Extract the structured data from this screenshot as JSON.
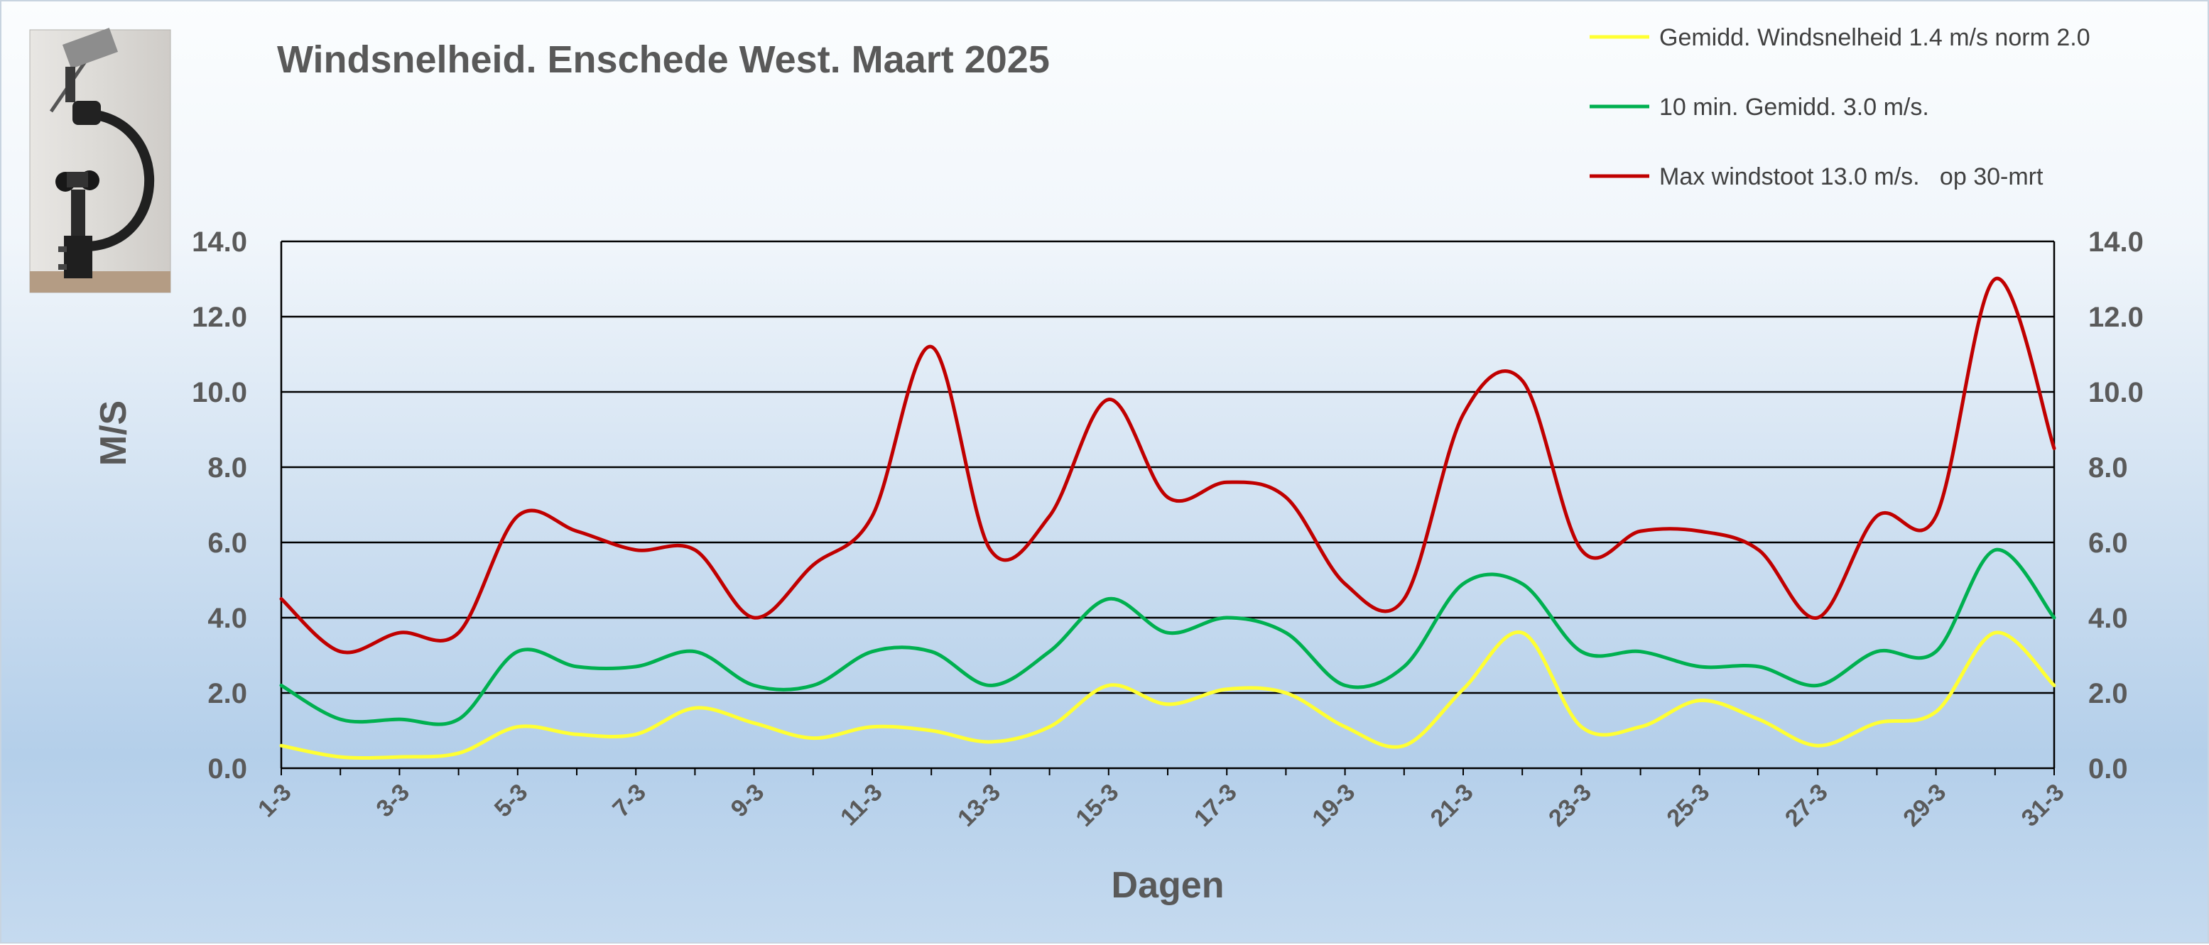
{
  "chart_data": {
    "type": "line",
    "title": "Windsnelheid. Enschede West. Maart 2025",
    "xlabel": "Dagen",
    "ylabel": "M/S",
    "ylim": [
      0,
      14
    ],
    "yticks": [
      "0.0",
      "2.0",
      "4.0",
      "6.0",
      "8.0",
      "10.0",
      "12.0",
      "14.0"
    ],
    "grid": true,
    "legend_position": "top-right",
    "x": [
      "1-3",
      "2-3",
      "3-3",
      "4-3",
      "5-3",
      "6-3",
      "7-3",
      "8-3",
      "9-3",
      "10-3",
      "11-3",
      "12-3",
      "13-3",
      "14-3",
      "15-3",
      "16-3",
      "17-3",
      "18-3",
      "19-3",
      "20-3",
      "21-3",
      "22-3",
      "23-3",
      "24-3",
      "25-3",
      "26-3",
      "27-3",
      "28-3",
      "29-3",
      "30-3",
      "31-3"
    ],
    "x_tick_labels": [
      "1-3",
      "3-3",
      "5-3",
      "7-3",
      "9-3",
      "11-3",
      "13-3",
      "15-3",
      "17-3",
      "19-3",
      "21-3",
      "23-3",
      "25-3",
      "27-3",
      "29-3",
      "31-3"
    ],
    "series": [
      {
        "name": "Gemidd. Windsnelheid 1.4 m/s norm 2.0",
        "color": "#ffff33",
        "values": [
          0.6,
          0.3,
          0.3,
          0.4,
          1.1,
          0.9,
          0.9,
          1.6,
          1.2,
          0.8,
          1.1,
          1.0,
          0.7,
          1.1,
          2.2,
          1.7,
          2.1,
          2.0,
          1.1,
          0.6,
          2.1,
          3.6,
          1.1,
          1.1,
          1.8,
          1.3,
          0.6,
          1.2,
          1.5,
          3.6,
          2.2
        ]
      },
      {
        "name": "10 min. Gemidd. 3.0 m/s.",
        "color": "#00b050",
        "values": [
          2.2,
          1.3,
          1.3,
          1.3,
          3.1,
          2.7,
          2.7,
          3.1,
          2.2,
          2.2,
          3.1,
          3.1,
          2.2,
          3.1,
          4.5,
          3.6,
          4.0,
          3.6,
          2.2,
          2.7,
          4.9,
          4.9,
          3.1,
          3.1,
          2.7,
          2.7,
          2.2,
          3.1,
          3.1,
          5.8,
          4.0
        ]
      },
      {
        "name": "Max windstoot 13.0 m/s.   op 30-mrt",
        "color": "#c00000",
        "values": [
          4.5,
          3.1,
          3.6,
          3.6,
          6.7,
          6.3,
          5.8,
          5.8,
          4.0,
          5.4,
          6.7,
          11.2,
          5.8,
          6.7,
          9.8,
          7.2,
          7.6,
          7.2,
          4.9,
          4.5,
          9.4,
          10.3,
          5.8,
          6.3,
          6.3,
          5.8,
          4.0,
          6.7,
          6.7,
          13.0,
          8.5
        ]
      }
    ]
  },
  "image": {
    "icon": "anemometer-photo"
  }
}
